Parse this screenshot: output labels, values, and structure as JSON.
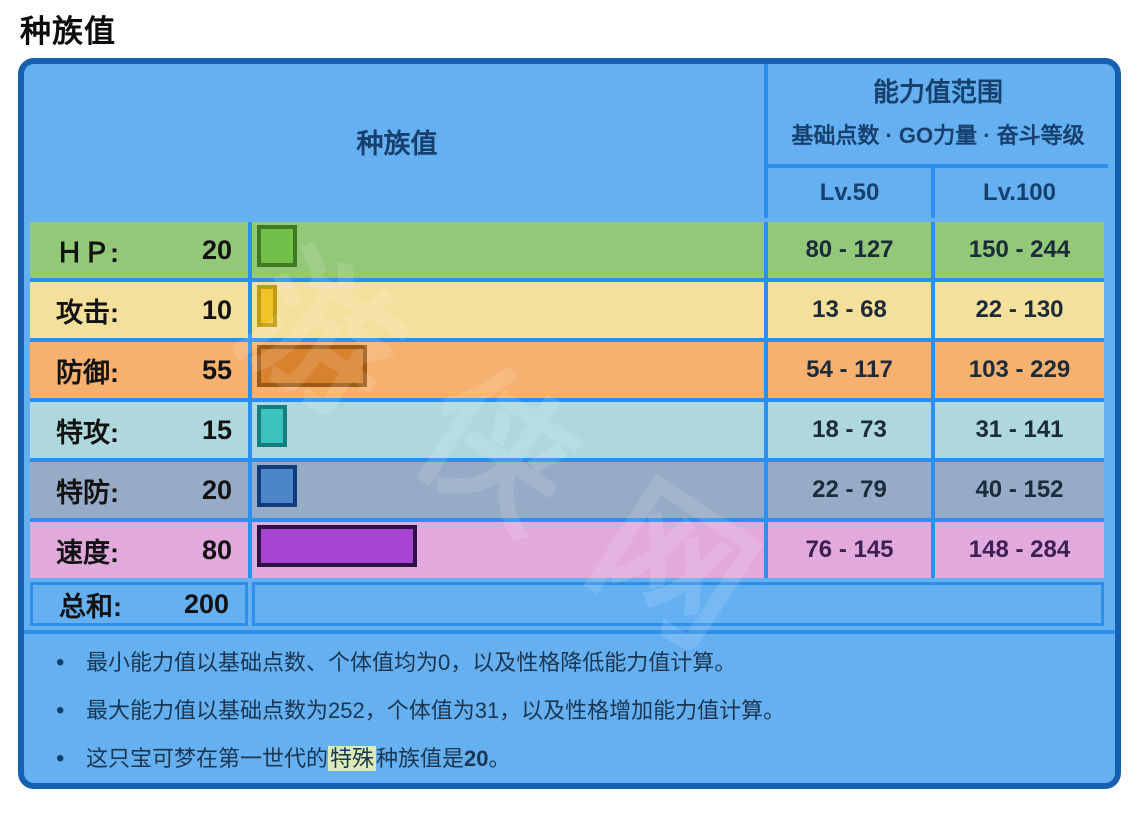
{
  "page": {
    "title": "种族值"
  },
  "table": {
    "header": {
      "stats_label": "种族值",
      "range_title": "能力值范围",
      "range_subtitle": "基础点数 · GO力量 · 奋斗等级",
      "lv50": "Lv.50",
      "lv100": "Lv.100"
    },
    "rows": [
      {
        "label": "ＨＰ:",
        "value": 20,
        "lv50": "80 - 127",
        "lv100": "150 - 244",
        "colors": {
          "row_bg": "#92c878",
          "bar_fill": "#72bf4a",
          "bar_border": "#3e7a1f"
        }
      },
      {
        "label": "攻击:",
        "value": 10,
        "lv50": "13 - 68",
        "lv100": "22 - 130",
        "colors": {
          "row_bg": "#f4e09b",
          "bar_fill": "#f0c328",
          "bar_border": "#c09a10"
        }
      },
      {
        "label": "防御:",
        "value": 55,
        "lv50": "54 - 117",
        "lv100": "103 - 229",
        "colors": {
          "row_bg": "#f6b170",
          "bar_fill": "#d8822e",
          "bar_border": "#9c5a18"
        }
      },
      {
        "label": "特攻:",
        "value": 15,
        "lv50": "18 - 73",
        "lv100": "31 - 141",
        "colors": {
          "row_bg": "#aed8dd",
          "bar_fill": "#3cc2be",
          "bar_border": "#157c80"
        }
      },
      {
        "label": "特防:",
        "value": 20,
        "lv50": "22 - 79",
        "lv100": "40 - 152",
        "colors": {
          "row_bg": "#96abc6",
          "bar_fill": "#4d86c8",
          "bar_border": "#113d7e"
        }
      },
      {
        "label": "速度:",
        "value": 80,
        "lv50": "76 - 145",
        "lv100": "148 - 284",
        "colors": {
          "row_bg": "#e2a9dc",
          "bar_fill": "#a844d2",
          "bar_border": "#2e1243",
          "range_text": "#3c1f55"
        }
      }
    ],
    "total": {
      "label": "总和:",
      "value": "200"
    }
  },
  "notes": {
    "note1": "最小能力值以基础点数、个体值均为0，以及性格降低能力值计算。",
    "note2": "最大能力值以基础点数为252，个体值为31，以及性格增加能力值计算。",
    "note3_pre": "这只宝可梦在第一世代的",
    "note3_highlight": "特殊",
    "note3_mid": "种族值是",
    "note3_value": "20",
    "note3_end": "。",
    "bullet_char": "•"
  },
  "watermark": "游侠网",
  "colors": {
    "container_bg": "#65b0f1",
    "container_border": "#1660b4",
    "grid_line": "#2b8ff0",
    "header_text": "#17406e",
    "note_text": "#1c3550",
    "highlight_bg": "#dcecb8"
  },
  "chart_data": {
    "type": "bar",
    "title": "种族值",
    "categories": [
      "ＨＰ",
      "攻击",
      "防御",
      "特攻",
      "特防",
      "速度"
    ],
    "values": [
      20,
      10,
      55,
      15,
      20,
      80
    ],
    "total": 200,
    "xlim": [
      0,
      255
    ],
    "orientation": "horizontal",
    "series": [
      {
        "name": "Lv.50范围",
        "values": [
          "80 - 127",
          "13 - 68",
          "54 - 117",
          "18 - 73",
          "22 - 79",
          "76 - 145"
        ]
      },
      {
        "name": "Lv.100范围",
        "values": [
          "150 - 244",
          "22 - 130",
          "103 - 229",
          "31 - 141",
          "40 - 152",
          "148 - 284"
        ]
      }
    ]
  }
}
